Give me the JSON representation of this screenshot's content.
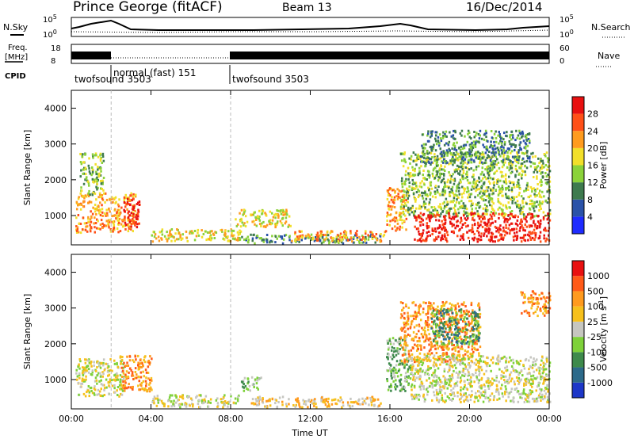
{
  "header": {
    "station": "Prince George (fitACF)",
    "beam": "Beam 13",
    "date": "16/Dec/2014"
  },
  "panels": {
    "nsky_label": "N.Sky",
    "nsearch_label": "N.Search",
    "freq_label_1": "Freq.",
    "freq_label_2": "[MHz]",
    "nave_label": "Nave",
    "cpid_label": "CPID",
    "nsky_ticks": [
      "10^5",
      "10^0"
    ],
    "freq_ticks": [
      "18",
      "8"
    ],
    "nave_ticks": [
      "60",
      "0"
    ],
    "cpid_segments": [
      {
        "label": "twofsound 3503",
        "start_hour": 0
      },
      {
        "label": "normal (fast) 151",
        "start_hour": 2
      },
      {
        "label": "twofsound 3503",
        "start_hour": 8
      }
    ]
  },
  "colors": {
    "power": [
      "#1e2bff",
      "#2a52a8",
      "#3e7a4e",
      "#8bd23a",
      "#f2df2a",
      "#ff9b1e",
      "#ff5018",
      "#e81010"
    ],
    "velocity": [
      "#1d37c8",
      "#2d6a8a",
      "#3e8a4c",
      "#7ed13a",
      "#c6c6c0",
      "#f6c01c",
      "#ff9a1e",
      "#ff5a18",
      "#e81010"
    ]
  },
  "chart_data": [
    {
      "type": "heatmap",
      "name": "power",
      "xlabel": "",
      "ylabel": "Slant Range [km]",
      "xlim": [
        0,
        24
      ],
      "ylim": [
        180,
        4500
      ],
      "xticks": [
        "00:00",
        "04:00",
        "08:00",
        "12:00",
        "16:00",
        "20:00",
        "00:00"
      ],
      "yticks": [
        1000,
        2000,
        3000,
        4000
      ],
      "colorbar_label": "Power [dB]",
      "colorbar_ticks": [
        "4",
        "8",
        "12",
        "16",
        "20",
        "24",
        "28"
      ],
      "colorbar_range": [
        0,
        32
      ],
      "markers_hours": [
        2,
        8
      ],
      "regions": [
        {
          "t0": 0.2,
          "t1": 3.2,
          "r0": 550,
          "r1": 1650,
          "level": 5
        },
        {
          "t0": 0.4,
          "t1": 1.6,
          "r0": 1600,
          "r1": 2800,
          "level": 3
        },
        {
          "t0": 2.6,
          "t1": 3.4,
          "r0": 700,
          "r1": 1500,
          "level": 7
        },
        {
          "t0": 4.0,
          "t1": 8.5,
          "r0": 300,
          "r1": 650,
          "level": 4
        },
        {
          "t0": 8.2,
          "t1": 11.0,
          "r0": 700,
          "r1": 1200,
          "level": 4
        },
        {
          "t0": 8.5,
          "t1": 15.5,
          "r0": 250,
          "r1": 500,
          "level": 2
        },
        {
          "t0": 11.0,
          "t1": 15.8,
          "r0": 300,
          "r1": 600,
          "level": 5
        },
        {
          "t0": 15.8,
          "t1": 16.8,
          "r0": 600,
          "r1": 1800,
          "level": 5
        },
        {
          "t0": 16.5,
          "t1": 24.0,
          "r0": 1000,
          "r1": 2800,
          "level": 3
        },
        {
          "t0": 17.5,
          "t1": 23.0,
          "r0": 2500,
          "r1": 3400,
          "level": 2
        },
        {
          "t0": 17.2,
          "t1": 24.0,
          "r0": 300,
          "r1": 1100,
          "level": 7
        }
      ]
    },
    {
      "type": "heatmap",
      "name": "velocity",
      "xlabel": "Time UT",
      "ylabel": "Slant Range [km]",
      "xlim": [
        0,
        24
      ],
      "ylim": [
        180,
        4500
      ],
      "xticks": [
        "00:00",
        "04:00",
        "08:00",
        "12:00",
        "16:00",
        "20:00",
        "00:00"
      ],
      "yticks": [
        1000,
        2000,
        3000,
        4000
      ],
      "colorbar_label": "Velocity [m s^-1]",
      "colorbar_ticks": [
        "1000",
        "500",
        "100",
        "25",
        "-25",
        "-100",
        "-500",
        "-1000"
      ],
      "markers_hours": [
        2,
        8
      ],
      "regions": [
        {
          "t0": 0.2,
          "t1": 2.6,
          "r0": 550,
          "r1": 1600,
          "level": 4
        },
        {
          "t0": 2.4,
          "t1": 4.0,
          "r0": 700,
          "r1": 1700,
          "level": 6
        },
        {
          "t0": 4.0,
          "t1": 8.5,
          "r0": 250,
          "r1": 600,
          "level": 4
        },
        {
          "t0": 8.5,
          "t1": 9.5,
          "r0": 700,
          "r1": 1100,
          "level": 3
        },
        {
          "t0": 9.0,
          "t1": 15.5,
          "r0": 250,
          "r1": 550,
          "level": 5
        },
        {
          "t0": 15.8,
          "t1": 17.0,
          "r0": 700,
          "r1": 2200,
          "level": 3
        },
        {
          "t0": 16.5,
          "t1": 20.5,
          "r0": 1500,
          "r1": 3200,
          "level": 6
        },
        {
          "t0": 18.0,
          "t1": 20.5,
          "r0": 2000,
          "r1": 3000,
          "level": 2
        },
        {
          "t0": 17.0,
          "t1": 24.0,
          "r0": 400,
          "r1": 1700,
          "level": 4
        },
        {
          "t0": 22.5,
          "t1": 24.0,
          "r0": 2800,
          "r1": 3500,
          "level": 6
        }
      ]
    }
  ]
}
